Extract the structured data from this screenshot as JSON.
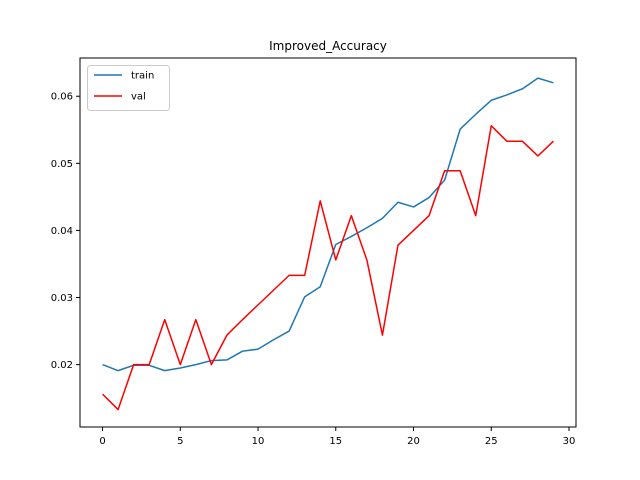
{
  "chart_data": {
    "type": "line",
    "title": "Improved_Accuracy",
    "xlabel": "",
    "ylabel": "",
    "xlim": [
      -1.45,
      30.45
    ],
    "ylim": [
      0.0107,
      0.0657
    ],
    "xticks": [
      0,
      5,
      10,
      15,
      20,
      25,
      30
    ],
    "yticks": [
      0.02,
      0.03,
      0.04,
      0.05,
      0.06
    ],
    "xtick_labels": [
      "0",
      "5",
      "10",
      "15",
      "20",
      "25",
      "30"
    ],
    "ytick_labels": [
      "0.02",
      "0.03",
      "0.04",
      "0.05",
      "0.06"
    ],
    "grid": false,
    "legend_position": "upper-left",
    "x": [
      0,
      1,
      2,
      3,
      4,
      5,
      6,
      7,
      8,
      9,
      10,
      11,
      12,
      13,
      14,
      15,
      16,
      17,
      18,
      19,
      20,
      21,
      22,
      23,
      24,
      25,
      26,
      27,
      28,
      29
    ],
    "series": [
      {
        "name": "train",
        "color": "#1f77b4",
        "values": [
          0.02,
          0.0191,
          0.0199,
          0.0199,
          0.0191,
          0.0195,
          0.02,
          0.0206,
          0.0207,
          0.022,
          0.0223,
          0.0237,
          0.025,
          0.0301,
          0.0316,
          0.0379,
          0.0391,
          0.0404,
          0.0418,
          0.0442,
          0.0435,
          0.0449,
          0.0475,
          0.0551,
          0.0573,
          0.0594,
          0.0602,
          0.0611,
          0.0627,
          0.062
        ]
      },
      {
        "name": "val",
        "color": "#ff0000",
        "values": [
          0.0156,
          0.0133,
          0.02,
          0.02,
          0.0267,
          0.02,
          0.0267,
          0.02,
          0.0244,
          0.0267,
          0.0289,
          0.0311,
          0.0333,
          0.0333,
          0.0444,
          0.0356,
          0.0422,
          0.0356,
          0.0244,
          0.0378,
          0.04,
          0.0422,
          0.0489,
          0.0489,
          0.0422,
          0.0556,
          0.0533,
          0.0533,
          0.0511,
          0.0533
        ]
      }
    ]
  }
}
